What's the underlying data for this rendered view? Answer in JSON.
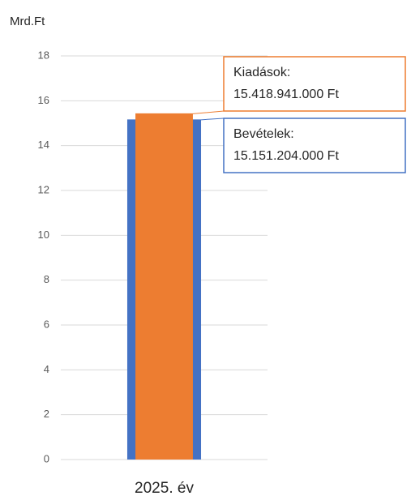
{
  "chart_data": {
    "type": "bar",
    "y_label": "Mrd.Ft",
    "categories": [
      "2025. év"
    ],
    "series": [
      {
        "name": "Bevételek:",
        "color": "#4472c4",
        "values": [
          15.151204
        ],
        "value_labels": [
          "15.151.204.000 Ft"
        ]
      },
      {
        "name": "Kiadások:",
        "color": "#ed7d31",
        "values": [
          15.418941
        ],
        "value_labels": [
          "15.418.941.000 Ft"
        ]
      }
    ],
    "ylim": [
      0,
      18
    ],
    "yticks": [
      0,
      2,
      4,
      6,
      8,
      10,
      12,
      14,
      16,
      18
    ],
    "grid": true
  }
}
